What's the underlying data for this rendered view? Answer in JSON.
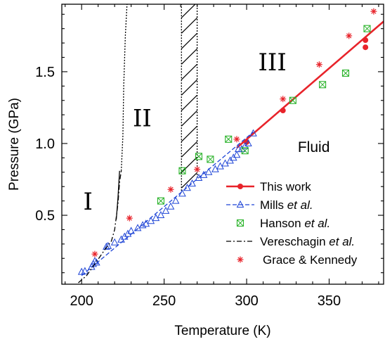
{
  "chart_data": {
    "type": "scatter",
    "title": "",
    "xlabel": "Temperature (K)",
    "ylabel": "Pressure (GPa)",
    "xlim": [
      188,
      383
    ],
    "ylim": [
      0.02,
      1.97
    ],
    "x_ticks": [
      200,
      250,
      300,
      350
    ],
    "y_ticks": [
      0.5,
      1.0,
      1.5
    ],
    "x_tick_labels": [
      "200",
      "250",
      "300",
      "350"
    ],
    "y_tick_labels": [
      "0.5",
      "1.0",
      "1.5"
    ],
    "grid": false,
    "legend_position": "lower-right",
    "region_labels": [
      {
        "text": "I",
        "x": 201,
        "y": 0.54
      },
      {
        "text": "II",
        "x": 231,
        "y": 1.12
      },
      {
        "text": "III",
        "x": 307,
        "y": 1.51
      },
      {
        "text": "Fluid",
        "x": 331,
        "y": 0.94
      }
    ],
    "series": [
      {
        "name": "This work",
        "color": "#e8232a",
        "marker": "circle",
        "points": [
          [
            300,
            1.01
          ],
          [
            322,
            1.23
          ],
          [
            372,
            1.67
          ],
          [
            372,
            1.72
          ]
        ],
        "fit_line": [
          [
            294,
            0.97
          ],
          [
            383,
            1.85
          ]
        ]
      },
      {
        "name": "Mills et al.",
        "name_parts": [
          "Mills ",
          "et al."
        ],
        "color": "#1f45d6",
        "marker": "triangle",
        "points": [
          [
            200,
            0.105
          ],
          [
            202,
            0.11
          ],
          [
            206,
            0.14
          ],
          [
            207,
            0.16
          ],
          [
            208,
            0.18
          ],
          [
            209,
            0.17
          ],
          [
            215,
            0.28
          ],
          [
            216,
            0.285
          ],
          [
            220,
            0.31
          ],
          [
            224,
            0.33
          ],
          [
            226,
            0.35
          ],
          [
            228,
            0.37
          ],
          [
            230,
            0.39
          ],
          [
            234,
            0.41
          ],
          [
            237,
            0.43
          ],
          [
            239,
            0.44
          ],
          [
            242,
            0.46
          ],
          [
            245,
            0.48
          ],
          [
            248,
            0.5
          ],
          [
            251,
            0.53
          ],
          [
            254,
            0.56
          ],
          [
            257,
            0.6
          ],
          [
            261,
            0.65
          ],
          [
            264,
            0.69
          ],
          [
            267,
            0.72
          ],
          [
            271,
            0.76
          ],
          [
            274,
            0.78
          ],
          [
            277,
            0.8
          ],
          [
            281,
            0.82
          ],
          [
            284,
            0.84
          ],
          [
            287,
            0.86
          ],
          [
            290,
            0.88
          ],
          [
            292,
            0.9
          ],
          [
            294,
            0.92
          ],
          [
            295,
            0.96
          ],
          [
            297,
            0.96
          ],
          [
            299,
            0.98
          ],
          [
            301,
            1.0
          ],
          [
            304,
            1.07
          ]
        ],
        "dashed_line": [
          [
            200,
            0.08
          ],
          [
            304,
            1.08
          ]
        ]
      },
      {
        "name": "Hanson et al.",
        "name_parts": [
          "Hanson ",
          "et al."
        ],
        "color": "#2bb32b",
        "marker": "crossed-square",
        "points": [
          [
            248,
            0.6
          ],
          [
            261,
            0.81
          ],
          [
            271,
            0.91
          ],
          [
            278,
            0.89
          ],
          [
            289,
            1.03
          ],
          [
            299,
            0.95
          ],
          [
            328,
            1.3
          ],
          [
            346,
            1.41
          ],
          [
            360,
            1.49
          ],
          [
            373,
            1.8
          ]
        ]
      },
      {
        "name": "Vereschagin et al.",
        "name_parts": [
          "Vereschagin ",
          "et al."
        ],
        "color": "#000000",
        "marker": "dash-dot-line",
        "line": [
          [
            198,
            0.03
          ],
          [
            203,
            0.08
          ],
          [
            208,
            0.16
          ],
          [
            214,
            0.26
          ],
          [
            218,
            0.32
          ],
          [
            220,
            0.4
          ],
          [
            222,
            0.58
          ],
          [
            223,
            0.73
          ],
          [
            224,
            0.81
          ]
        ]
      },
      {
        "name": "Grace & Kennedy",
        "color": "#e8232a",
        "marker": "asterisk",
        "points": [
          [
            208,
            0.23
          ],
          [
            229,
            0.48
          ],
          [
            254,
            0.68
          ],
          [
            270,
            0.82
          ],
          [
            294,
            1.03
          ],
          [
            322,
            1.31
          ],
          [
            344,
            1.55
          ],
          [
            362,
            1.75
          ],
          [
            377,
            1.92
          ]
        ]
      }
    ],
    "phase_boundaries": {
      "solid_line": [
        [
          224,
          0.81
        ],
        [
          224,
          0.81
        ]
      ],
      "dotted_curve": [
        [
          224,
          0.81
        ],
        [
          225,
          1.05
        ],
        [
          225.5,
          1.4
        ],
        [
          226.5,
          1.75
        ],
        [
          227.5,
          1.97
        ]
      ],
      "dotted_vertical_left": [
        [
          260.5,
          0.67
        ],
        [
          260.5,
          1.97
        ]
      ],
      "dotted_vertical_right": [
        [
          270,
          0.76
        ],
        [
          270,
          1.97
        ]
      ],
      "hatched_band": {
        "x_from": 260.5,
        "x_to": 270,
        "y_from": 0.67,
        "y_to": 1.97
      }
    }
  }
}
